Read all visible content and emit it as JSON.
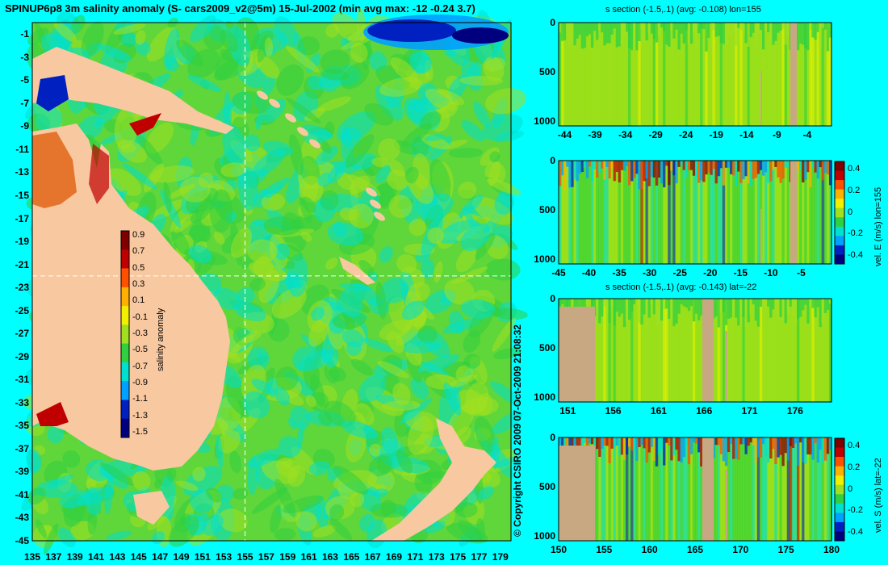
{
  "header": {
    "title": "SPINUP6p8 3m salinity anomaly (S- cars2009_v2@5m) 15-Jul-2002 (min avg max: -12 -0.24 3.7)",
    "copyright": "© Copyright CSIRO 2009   07-Oct-2009 21:08:32"
  },
  "colors": {
    "background": "#00ffff",
    "land": "#f8c8a0",
    "section_land": "#c8a882",
    "ocean_base": "#5fd63a",
    "colormap": [
      "#00007f",
      "#0020c0",
      "#00a0ff",
      "#00e0d0",
      "#30d040",
      "#a0e020",
      "#f0f000",
      "#ffb000",
      "#ff5000",
      "#c00000",
      "#800000"
    ]
  },
  "chart_data": [
    {
      "type": "heatmap",
      "title": "SPINUP6p8 3m salinity anomaly (S- cars2009_v2@5m) 15-Jul-2002 (min avg max: -12 -0.24 3.7)",
      "x_ticks": [
        "135",
        "137",
        "139",
        "141",
        "143",
        "145",
        "147",
        "149",
        "151",
        "153",
        "155",
        "157",
        "159",
        "161",
        "163",
        "165",
        "167",
        "169",
        "171",
        "173",
        "175",
        "177",
        "179"
      ],
      "y_ticks": [
        "-1",
        "-3",
        "-5",
        "-7",
        "-9",
        "-11",
        "-13",
        "-15",
        "-17",
        "-19",
        "-21",
        "-23",
        "-25",
        "-27",
        "-29",
        "-31",
        "-33",
        "-35",
        "-37",
        "-39",
        "-41",
        "-43",
        "-45"
      ],
      "xlim": [
        135,
        180
      ],
      "ylim": [
        -45,
        0
      ],
      "crosshair": {
        "lon": 155,
        "lat": -22
      },
      "colorbar": {
        "label": "salinity anomaly",
        "ticks": [
          "0.9",
          "0.7",
          "0.5",
          "0.3",
          "0.1",
          "-0.1",
          "-0.3",
          "-0.5",
          "-0.7",
          "-0.9",
          "-1.1",
          "-1.3",
          "-1.5"
        ],
        "range": [
          -1.5,
          0.9
        ]
      }
    },
    {
      "type": "heatmap",
      "title": "s section (-1.5,.1) (avg: -0.108) lon=155",
      "x_ticks": [
        "-44",
        "-39",
        "-34",
        "-29",
        "-24",
        "-19",
        "-14",
        "-9",
        "-4"
      ],
      "y_ticks": [
        "0",
        "500",
        "1000"
      ],
      "xlim": [
        -45,
        0
      ],
      "ylim": [
        1050,
        0
      ]
    },
    {
      "type": "heatmap",
      "title": "",
      "colorbar_label": "vel. E (m/s) lon=155",
      "x_ticks": [
        "-45",
        "-40",
        "-35",
        "-30",
        "-25",
        "-20",
        "-15",
        "-10",
        "-5"
      ],
      "y_ticks": [
        "0",
        "500",
        "1000"
      ],
      "colorbar_ticks": [
        "0.4",
        "0.2",
        "0",
        "-0.2",
        "-0.4"
      ],
      "xlim": [
        -45,
        0
      ],
      "ylim": [
        1050,
        0
      ]
    },
    {
      "type": "heatmap",
      "title": "s section (-1.5,.1) (avg: -0.143) lat=-22",
      "x_ticks": [
        "151",
        "156",
        "161",
        "166",
        "171",
        "176"
      ],
      "y_ticks": [
        "0",
        "500",
        "1000"
      ],
      "xlim": [
        150,
        180
      ],
      "ylim": [
        1050,
        0
      ]
    },
    {
      "type": "heatmap",
      "title": "",
      "colorbar_label": "vel. S (m/s) lat=-22",
      "x_ticks": [
        "150",
        "155",
        "160",
        "165",
        "170",
        "175",
        "180"
      ],
      "y_ticks": [
        "0",
        "500",
        "1000"
      ],
      "colorbar_ticks": [
        "0.4",
        "0.2",
        "0",
        "-0.2",
        "-0.4"
      ],
      "xlim": [
        150,
        180
      ],
      "ylim": [
        1050,
        0
      ]
    }
  ]
}
